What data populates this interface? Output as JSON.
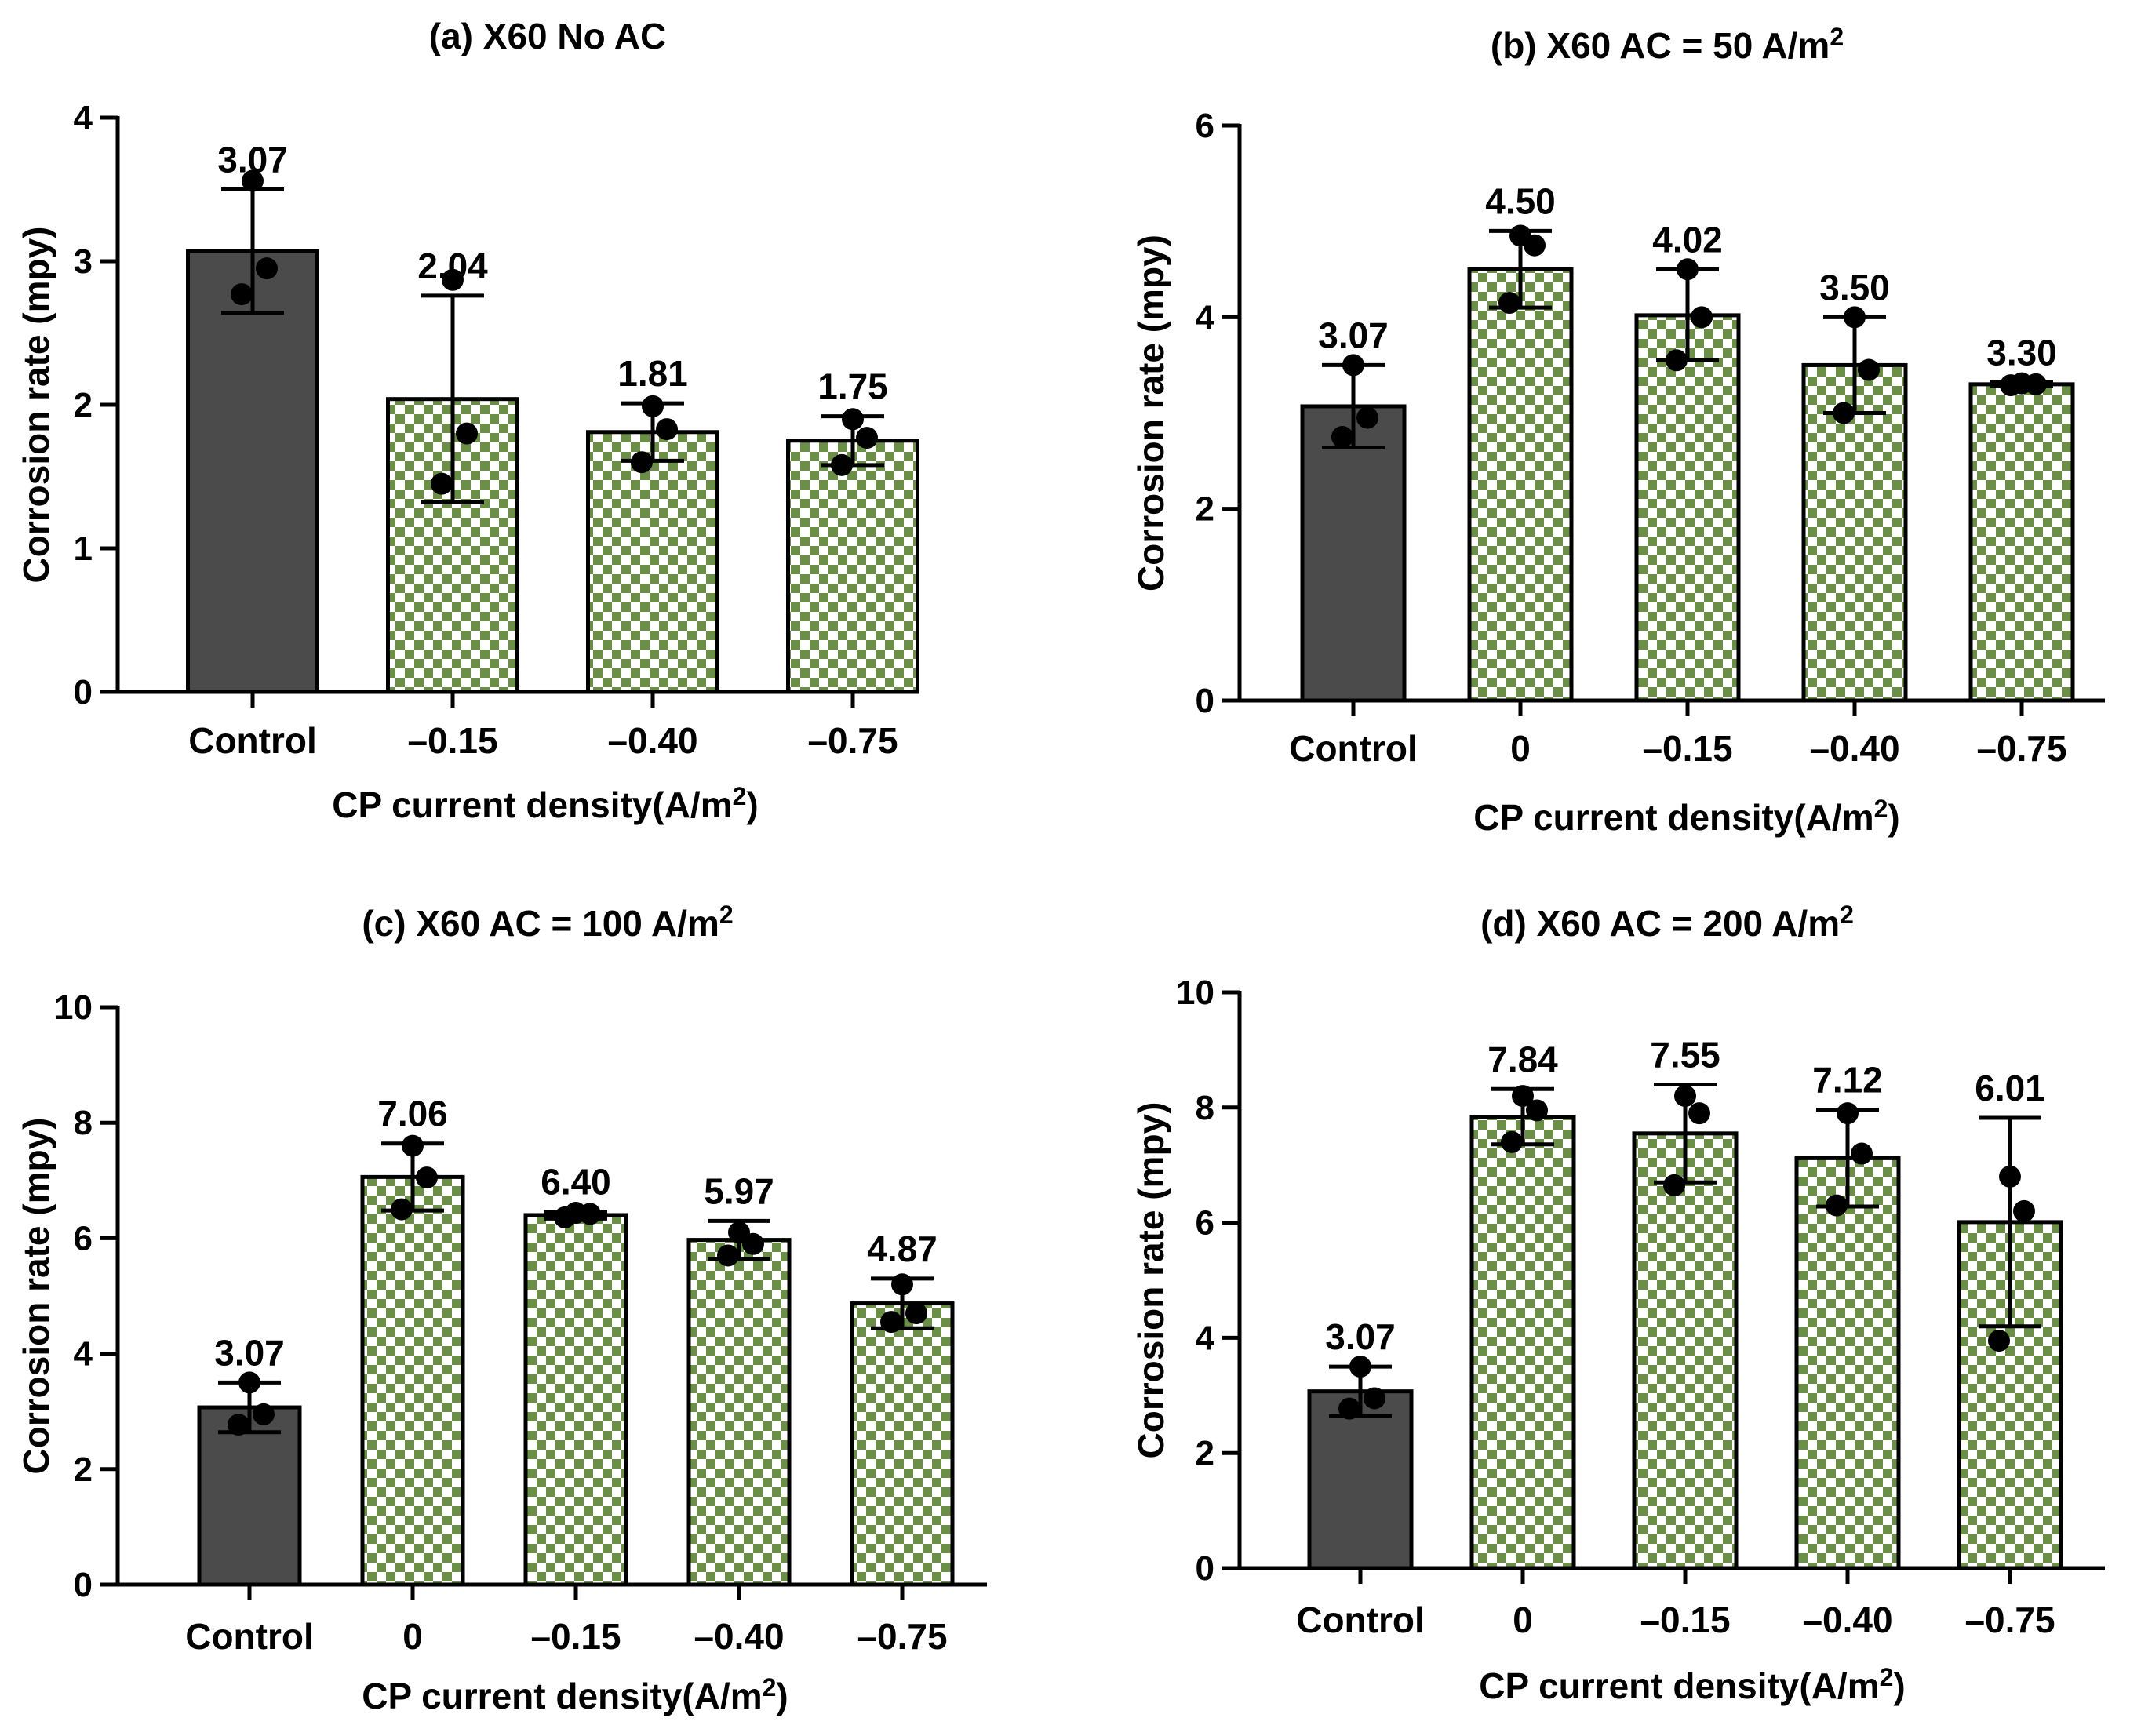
{
  "figure": {
    "y_axis_label": "Corrosion rate (mpy)"
  },
  "colors": {
    "control_fill": "#4b4b4b",
    "check_green": "#6b8f47",
    "check_white": "#ffffff",
    "axis": "#000000",
    "point": "#000000"
  },
  "chart_data": [
    {
      "id": "a",
      "type": "bar",
      "title": "(a) X60 No AC",
      "title_sup": "",
      "xlabel": "CP current density(A/m",
      "xlabel_sup": "2",
      "xlabel_tail": ")",
      "ylabel": "Corrosion rate (mpy)",
      "ylim": [
        0,
        4
      ],
      "yticks": [
        0,
        1,
        2,
        3,
        4
      ],
      "categories": [
        "Control",
        "–0.15",
        "–0.40",
        "–0.75"
      ],
      "values": [
        3.07,
        2.04,
        1.81,
        1.75
      ],
      "labels": [
        "3.07",
        "2.04",
        "1.81",
        "1.75"
      ],
      "error_low": [
        2.64,
        1.32,
        1.61,
        1.58
      ],
      "error_high": [
        3.5,
        2.76,
        2.01,
        1.92
      ],
      "points": [
        [
          2.77,
          2.95,
          3.56
        ],
        [
          1.45,
          1.8,
          2.87
        ],
        [
          1.6,
          1.83,
          1.99
        ],
        [
          1.58,
          1.77,
          1.9
        ]
      ],
      "fills": [
        "solid",
        "checker",
        "checker",
        "checker"
      ]
    },
    {
      "id": "b",
      "type": "bar",
      "title": "(b) X60  AC = 50 A/m",
      "title_sup": "2",
      "xlabel": "CP current density(A/m",
      "xlabel_sup": "2",
      "xlabel_tail": ")",
      "ylabel": "Corrosion rate (mpy)",
      "ylim": [
        0,
        6
      ],
      "yticks": [
        0,
        2,
        4,
        6
      ],
      "categories": [
        "Control",
        "0",
        "–0.15",
        "–0.40",
        "–0.75"
      ],
      "values": [
        3.07,
        4.5,
        4.02,
        3.5,
        3.3
      ],
      "labels": [
        "3.07",
        "4.50",
        "4.02",
        "3.50",
        "3.30"
      ],
      "error_low": [
        2.64,
        4.1,
        3.55,
        3.0,
        3.28
      ],
      "error_high": [
        3.5,
        4.9,
        4.5,
        4.0,
        3.32
      ],
      "points": [
        [
          2.75,
          2.95,
          3.5
        ],
        [
          4.15,
          4.75,
          4.85
        ],
        [
          3.55,
          4.0,
          4.5
        ],
        [
          3.0,
          3.45,
          4.0
        ],
        [
          3.29,
          3.3,
          3.31
        ]
      ],
      "fills": [
        "solid",
        "checker",
        "checker",
        "checker",
        "checker"
      ]
    },
    {
      "id": "c",
      "type": "bar",
      "title": "(c) X60  AC = 100 A/m",
      "title_sup": "2",
      "xlabel": "CP current density(A/m",
      "xlabel_sup": "2",
      "xlabel_tail": ")",
      "ylabel": "Corrosion rate (mpy)",
      "ylim": [
        0,
        10
      ],
      "yticks": [
        0,
        2,
        4,
        6,
        8,
        10
      ],
      "categories": [
        "Control",
        "0",
        "–0.15",
        "–0.40",
        "–0.75"
      ],
      "values": [
        3.07,
        7.06,
        6.4,
        5.97,
        4.87
      ],
      "labels": [
        "3.07",
        "7.06",
        "6.40",
        "5.97",
        "4.87"
      ],
      "error_low": [
        2.64,
        6.48,
        6.34,
        5.64,
        4.44
      ],
      "error_high": [
        3.5,
        7.64,
        6.46,
        6.3,
        5.3
      ],
      "points": [
        [
          2.77,
          2.95,
          3.5
        ],
        [
          6.5,
          7.05,
          7.6
        ],
        [
          6.36,
          6.42,
          6.44
        ],
        [
          5.7,
          5.9,
          6.1
        ],
        [
          4.55,
          4.7,
          5.2
        ]
      ],
      "fills": [
        "solid",
        "checker",
        "checker",
        "checker",
        "checker"
      ]
    },
    {
      "id": "d",
      "type": "bar",
      "title": "(d) X60  AC = 200 A/m",
      "title_sup": "2",
      "xlabel": "CP current density(A/m",
      "xlabel_sup": "2",
      "xlabel_tail": ")",
      "ylabel": "Corrosion rate (mpy)",
      "ylim": [
        0,
        10
      ],
      "yticks": [
        0,
        2,
        4,
        6,
        8,
        10
      ],
      "categories": [
        "Control",
        "0",
        "–0.15",
        "–0.40",
        "–0.75"
      ],
      "values": [
        3.07,
        7.84,
        7.55,
        7.12,
        6.01
      ],
      "labels": [
        "3.07",
        "7.84",
        "7.55",
        "7.12",
        "6.01"
      ],
      "error_low": [
        2.64,
        7.36,
        6.7,
        6.28,
        4.2
      ],
      "error_high": [
        3.5,
        8.32,
        8.4,
        7.96,
        7.82
      ],
      "points": [
        [
          2.77,
          2.95,
          3.5
        ],
        [
          7.4,
          7.95,
          8.2
        ],
        [
          6.65,
          7.9,
          8.2
        ],
        [
          6.3,
          7.2,
          7.9
        ],
        [
          3.95,
          6.2,
          6.8
        ]
      ],
      "fills": [
        "solid",
        "checker",
        "checker",
        "checker",
        "checker"
      ]
    }
  ]
}
